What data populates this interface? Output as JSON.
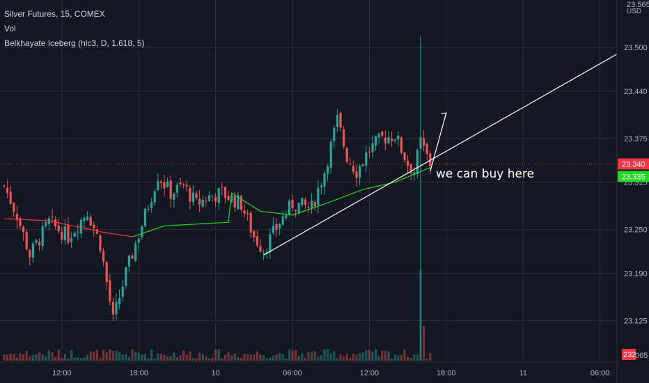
{
  "legend": {
    "line1": "Silver Futures, 15, COMEX",
    "line2": "Vol",
    "line3": "Belkhayate Iceberg (hlc3, D, 1.618, 5)"
  },
  "price_axis": {
    "currency": "USD",
    "current_price": "23.340",
    "indicator_value": "23.335",
    "volume_value": "232",
    "top_label": "23.565",
    "bottom_label": "065"
  },
  "annotation": "we can buy here",
  "colors": {
    "background": "#131722",
    "up": "#26a69a",
    "down": "#ef5350",
    "indicator_above": "#f23645",
    "indicator_below": "#22d822",
    "price_label_bg": "#f23645",
    "indicator_label_bg": "#22d822",
    "trendline": "#ffffff"
  },
  "chart_data": {
    "type": "candlestick",
    "symbol": "Silver Futures, 15, COMEX",
    "y_ticks": [
      23.5,
      23.44,
      23.375,
      23.315,
      23.25,
      23.19,
      23.125
    ],
    "ylim": [
      23.07,
      23.565
    ],
    "x_ticks": [
      "12:00",
      "18:00",
      "10",
      "06:00",
      "12:00",
      "18:00",
      "11",
      "06:00"
    ],
    "x_tick_bars": [
      18,
      42,
      66,
      90,
      114,
      138,
      162,
      186
    ],
    "price_series": [
      {
        "bar": 0,
        "close": 23.31
      },
      {
        "bar": 4,
        "close": 23.27
      },
      {
        "bar": 8,
        "close": 23.215
      },
      {
        "bar": 14,
        "close": 23.26
      },
      {
        "bar": 20,
        "close": 23.24
      },
      {
        "bar": 26,
        "close": 23.275
      },
      {
        "bar": 30,
        "close": 23.23
      },
      {
        "bar": 34,
        "close": 23.125
      },
      {
        "bar": 38,
        "close": 23.19
      },
      {
        "bar": 44,
        "close": 23.27
      },
      {
        "bar": 48,
        "close": 23.325
      },
      {
        "bar": 52,
        "close": 23.3
      },
      {
        "bar": 56,
        "close": 23.31
      },
      {
        "bar": 60,
        "close": 23.285
      },
      {
        "bar": 64,
        "close": 23.295
      },
      {
        "bar": 68,
        "close": 23.3
      },
      {
        "bar": 74,
        "close": 23.285
      },
      {
        "bar": 78,
        "close": 23.24
      },
      {
        "bar": 81,
        "close": 23.222
      },
      {
        "bar": 86,
        "close": 23.26
      },
      {
        "bar": 90,
        "close": 23.285
      },
      {
        "bar": 96,
        "close": 23.28
      },
      {
        "bar": 100,
        "close": 23.33
      },
      {
        "bar": 104,
        "close": 23.4
      },
      {
        "bar": 107,
        "close": 23.35
      },
      {
        "bar": 110,
        "close": 23.33
      },
      {
        "bar": 114,
        "close": 23.36
      },
      {
        "bar": 118,
        "close": 23.375
      },
      {
        "bar": 122,
        "close": 23.38
      },
      {
        "bar": 126,
        "close": 23.34
      },
      {
        "bar": 128,
        "close": 23.33
      },
      {
        "bar": 130,
        "close": 23.37
      },
      {
        "bar": 133,
        "close": 23.34
      }
    ],
    "indicator_series": [
      {
        "bar": 0,
        "value": 23.265
      },
      {
        "bar": 14,
        "value": 23.262
      },
      {
        "bar": 30,
        "value": 23.247
      },
      {
        "bar": 40,
        "value": 23.24
      },
      {
        "bar": 50,
        "value": 23.255
      },
      {
        "bar": 62,
        "value": 23.258
      },
      {
        "bar": 70,
        "value": 23.26
      },
      {
        "bar": 71,
        "value": 23.3
      },
      {
        "bar": 80,
        "value": 23.275
      },
      {
        "bar": 90,
        "value": 23.27
      },
      {
        "bar": 100,
        "value": 23.285
      },
      {
        "bar": 106,
        "value": 23.295
      },
      {
        "bar": 112,
        "value": 23.305
      },
      {
        "bar": 122,
        "value": 23.315
      },
      {
        "bar": 133,
        "value": 23.335
      }
    ],
    "indicator_switch_bar": 40,
    "volume_spike_bar": 130,
    "trendlines": [
      {
        "from_bar": 81,
        "from_price": 23.215,
        "to_bar": 197,
        "to_price": 23.505
      }
    ],
    "arrow": {
      "from_bar": 133,
      "from_price": 23.33,
      "to_bar": 138,
      "to_price": 23.41
    },
    "current_price": 23.34
  }
}
